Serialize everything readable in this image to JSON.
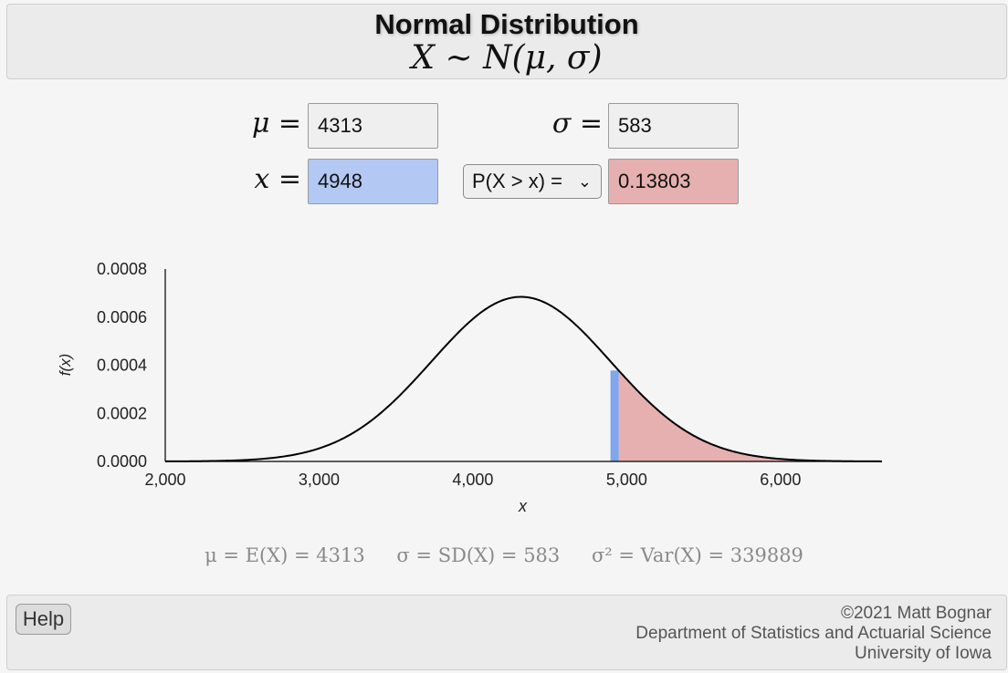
{
  "header": {
    "title": "Normal Distribution",
    "formula": "X ∼ N(μ, σ)"
  },
  "inputs": {
    "mu_label": "μ",
    "mu_value": "4313",
    "sigma_label": "σ",
    "sigma_value": "583",
    "x_label": "x",
    "x_value": "4948",
    "prob_select": "P(X > x) =",
    "prob_result": "0.13803",
    "equals": "="
  },
  "chart_data": {
    "type": "area",
    "mu": 4313,
    "sigma": 583,
    "shade_from": 4948,
    "xlabel": "x",
    "ylabel": "f(x)",
    "xlim": [
      2000,
      6660
    ],
    "ylim": [
      0,
      0.0008
    ],
    "x_ticks": [
      2000,
      3000,
      4000,
      5000,
      6000
    ],
    "x_tick_labels": [
      "2,000",
      "3,000",
      "4,000",
      "5,000",
      "6,000"
    ],
    "y_ticks": [
      0,
      0.0002,
      0.0004,
      0.0006,
      0.0008
    ],
    "y_tick_labels": [
      "0.0000",
      "0.0002",
      "0.0004",
      "0.0006",
      "0.0008"
    ],
    "colors": {
      "tail": "#e6b0b0",
      "marker": "#7fa6ec",
      "curve": "#000000"
    }
  },
  "stats": {
    "mean": "μ = E(X) = 4313",
    "sd": "σ = SD(X) = 583",
    "var": "σ² = Var(X) = 339889"
  },
  "footer": {
    "help_label": "Help",
    "copyright": "©2021 Matt Bognar",
    "department": "Department of Statistics and Actuarial Science",
    "university": "University of Iowa"
  }
}
